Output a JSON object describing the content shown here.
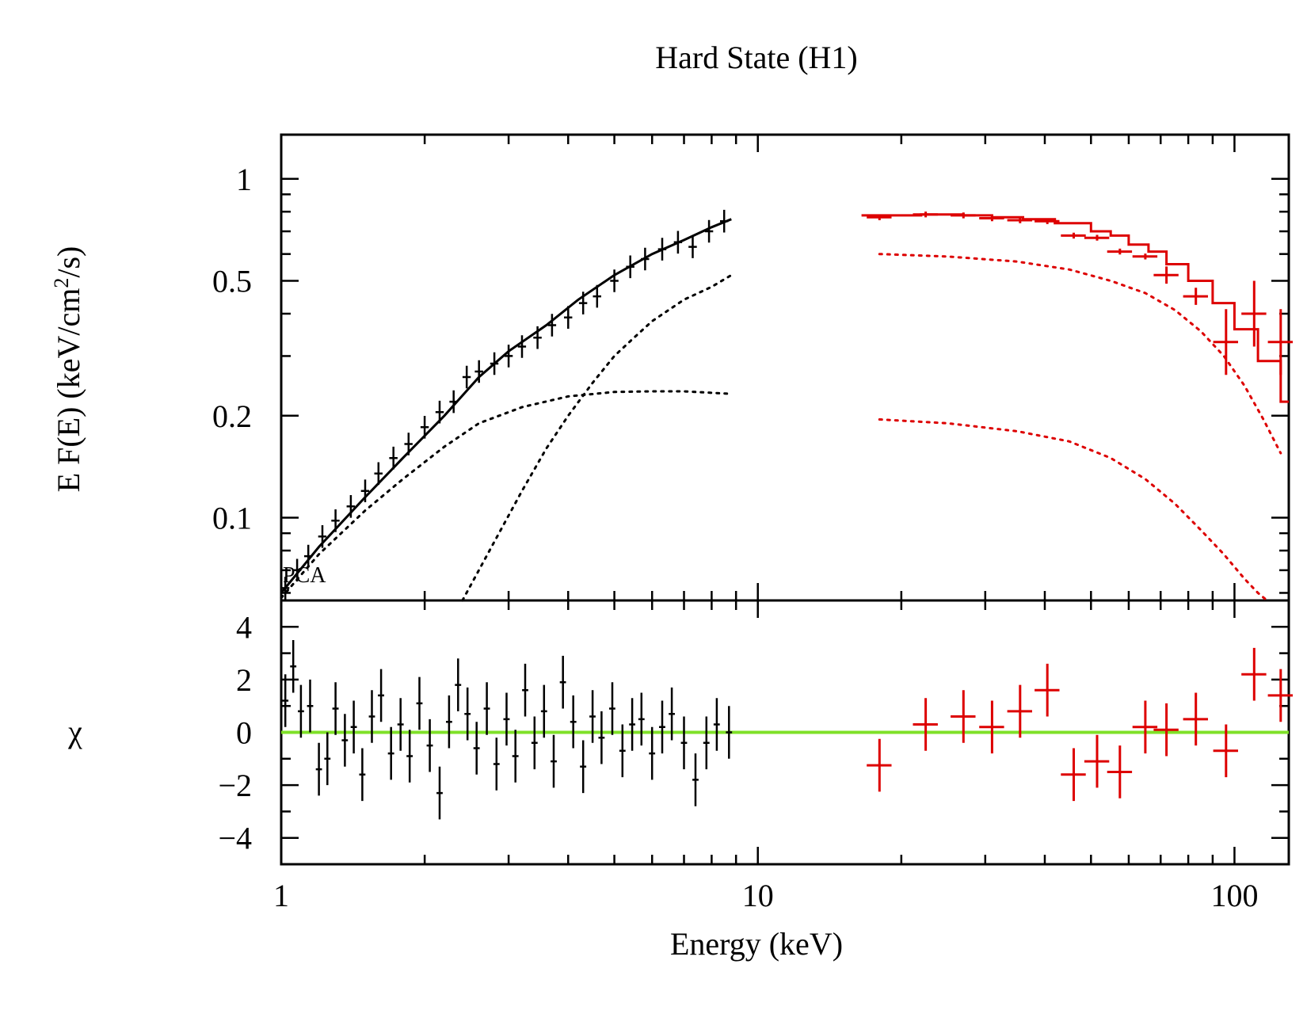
{
  "chart_data": {
    "type": "line",
    "title": "Hard State (H1)",
    "xlabel": "Energy (keV)",
    "x_scale": "log",
    "xlim": [
      1,
      130
    ],
    "x_ticks": [
      {
        "value": 1,
        "label": "1"
      },
      {
        "value": 10,
        "label": "10"
      },
      {
        "value": 100,
        "label": "100"
      }
    ],
    "colors": {
      "low_energy": "#000000",
      "high_energy": "#dd0000",
      "zero_line": "#7fe028"
    },
    "panels": {
      "spectrum": {
        "ylabel": "E F(E) (keV/cm²/s)",
        "ylabel_main": "E F(E) (keV/cm",
        "ylabel_sup": "2",
        "ylabel_tail": "/s)",
        "y_scale": "log",
        "ylim": [
          0.057,
          1.35
        ],
        "y_ticks": [
          {
            "value": 1,
            "label": "1"
          },
          {
            "value": 0.5,
            "label": "0.5"
          },
          {
            "value": 0.2,
            "label": "0.2"
          },
          {
            "value": 0.1,
            "label": "0.1"
          }
        ],
        "legend_text": "PCA",
        "series": [
          {
            "name": "PCA model (black, solid)",
            "color": "#000000",
            "x": [
              1.0,
              1.2,
              1.5,
              1.8,
              2.2,
              2.6,
              3.0,
              3.6,
              4.2,
              5.0,
              6.0,
              7.0,
              8.0,
              8.8
            ],
            "y": [
              0.06,
              0.082,
              0.115,
              0.15,
              0.2,
              0.26,
              0.31,
              0.37,
              0.44,
              0.52,
              0.6,
              0.66,
              0.72,
              0.76
            ]
          },
          {
            "name": "PCA data (black, error bars)",
            "color": "#000000",
            "x": [
              1.02,
              1.08,
              1.14,
              1.22,
              1.3,
              1.4,
              1.5,
              1.6,
              1.72,
              1.85,
              2.0,
              2.15,
              2.3,
              2.45,
              2.6,
              2.8,
              3.0,
              3.2,
              3.45,
              3.7,
              4.0,
              4.3,
              4.6,
              5.0,
              5.4,
              5.8,
              6.3,
              6.8,
              7.3,
              7.9,
              8.5
            ],
            "y": [
              0.062,
              0.07,
              0.077,
              0.088,
              0.098,
              0.108,
              0.12,
              0.135,
              0.15,
              0.165,
              0.185,
              0.205,
              0.22,
              0.26,
              0.27,
              0.285,
              0.3,
              0.32,
              0.34,
              0.37,
              0.39,
              0.43,
              0.45,
              0.5,
              0.55,
              0.58,
              0.62,
              0.65,
              0.63,
              0.7,
              0.75
            ]
          },
          {
            "name": "PCA component 1 (black, dotted)",
            "color": "#000000",
            "x": [
              1.0,
              1.2,
              1.5,
              1.8,
              2.2,
              2.6,
              3.2,
              4.0,
              5.0,
              6.0,
              7.0,
              8.8
            ],
            "y": [
              0.058,
              0.078,
              0.105,
              0.13,
              0.162,
              0.19,
              0.212,
              0.228,
              0.235,
              0.236,
              0.236,
              0.232
            ]
          },
          {
            "name": "PCA component 2 (black, dotted)",
            "color": "#000000",
            "x": [
              2.4,
              2.8,
              3.2,
              3.6,
              4.0,
              4.5,
              5.0,
              5.5,
              6.0,
              7.0,
              8.0,
              8.8
            ],
            "y": [
              0.057,
              0.085,
              0.12,
              0.16,
              0.2,
              0.25,
              0.3,
              0.34,
              0.38,
              0.44,
              0.48,
              0.52
            ]
          },
          {
            "name": "HEXTE model (red, histogram)",
            "color": "#dd0000",
            "x": [
              16.5,
              22,
              27,
              31,
              36,
              42,
              50,
              55,
              60,
              66,
              72,
              80,
              90,
              100,
              112,
              125,
              130
            ],
            "y": [
              0.78,
              0.785,
              0.78,
              0.77,
              0.76,
              0.74,
              0.7,
              0.68,
              0.64,
              0.61,
              0.56,
              0.5,
              0.43,
              0.36,
              0.29,
              0.22,
              0.185
            ]
          },
          {
            "name": "HEXTE data (red, error bars)",
            "color": "#dd0000",
            "x": [
              18,
              22.5,
              27,
              31,
              35.5,
              40.5,
              46,
              51.5,
              57.5,
              65,
              72,
              83,
              96,
              110,
              125
            ],
            "y": [
              0.77,
              0.785,
              0.78,
              0.765,
              0.755,
              0.75,
              0.68,
              0.67,
              0.61,
              0.59,
              0.52,
              0.45,
              0.33,
              0.4,
              0.33
            ]
          },
          {
            "name": "HEXTE component 1 (red, dotted)",
            "color": "#dd0000",
            "x": [
              18,
              25,
              35,
              45,
              55,
              65,
              75,
              85,
              95,
              105,
              115,
              125
            ],
            "y": [
              0.6,
              0.59,
              0.57,
              0.54,
              0.5,
              0.46,
              0.41,
              0.355,
              0.3,
              0.245,
              0.195,
              0.155
            ]
          },
          {
            "name": "HEXTE component 2 (red, dotted)",
            "color": "#dd0000",
            "x": [
              18,
              25,
              35,
              45,
              55,
              65,
              75,
              85,
              95,
              105,
              112,
              117
            ],
            "y": [
              0.195,
              0.19,
              0.18,
              0.168,
              0.15,
              0.13,
              0.11,
              0.092,
              0.078,
              0.066,
              0.06,
              0.057
            ]
          }
        ]
      },
      "residuals": {
        "ylabel": "χ",
        "ylim": [
          -5,
          5
        ],
        "y_ticks": [
          {
            "value": 4,
            "label": "4"
          },
          {
            "value": 2,
            "label": "2"
          },
          {
            "value": 0,
            "label": "0"
          },
          {
            "value": -2,
            "label": "−2"
          },
          {
            "value": -4,
            "label": "−4"
          }
        ],
        "zero_line": 0,
        "series": [
          {
            "name": "PCA residuals (black)",
            "color": "#000000",
            "x": [
              1.02,
              1.06,
              1.1,
              1.15,
              1.2,
              1.25,
              1.3,
              1.36,
              1.42,
              1.48,
              1.55,
              1.62,
              1.7,
              1.78,
              1.86,
              1.95,
              2.05,
              2.15,
              2.25,
              2.35,
              2.46,
              2.57,
              2.7,
              2.83,
              2.97,
              3.1,
              3.25,
              3.4,
              3.56,
              3.73,
              3.9,
              4.1,
              4.3,
              4.5,
              4.7,
              4.95,
              5.2,
              5.45,
              5.7,
              6.0,
              6.3,
              6.6,
              7.0,
              7.4,
              7.8,
              8.2,
              8.7
            ],
            "y": [
              1.2,
              2.5,
              0.8,
              1.0,
              -1.4,
              -1.0,
              0.9,
              -0.3,
              0.2,
              -1.6,
              0.6,
              1.4,
              -0.8,
              0.3,
              -0.9,
              1.1,
              -0.5,
              -2.3,
              0.4,
              1.8,
              0.7,
              -0.6,
              0.9,
              -1.2,
              0.5,
              -0.9,
              1.6,
              -0.4,
              0.8,
              -1.1,
              1.9,
              0.4,
              -1.3,
              0.6,
              -0.2,
              0.9,
              -0.7,
              0.3,
              0.5,
              -0.8,
              0.2,
              0.7,
              -0.4,
              -1.8,
              -0.4,
              0.3,
              0.0
            ]
          },
          {
            "name": "HEXTE residuals (red)",
            "color": "#dd0000",
            "x": [
              18,
              22.5,
              27,
              31,
              35.5,
              40.5,
              46,
              51.5,
              57.5,
              65,
              72,
              83,
              96,
              110,
              125
            ],
            "y": [
              -1.25,
              0.3,
              0.6,
              0.2,
              0.8,
              1.6,
              -1.6,
              -1.1,
              -1.5,
              0.2,
              0.1,
              0.5,
              -0.7,
              2.2,
              1.4
            ]
          }
        ]
      }
    }
  }
}
